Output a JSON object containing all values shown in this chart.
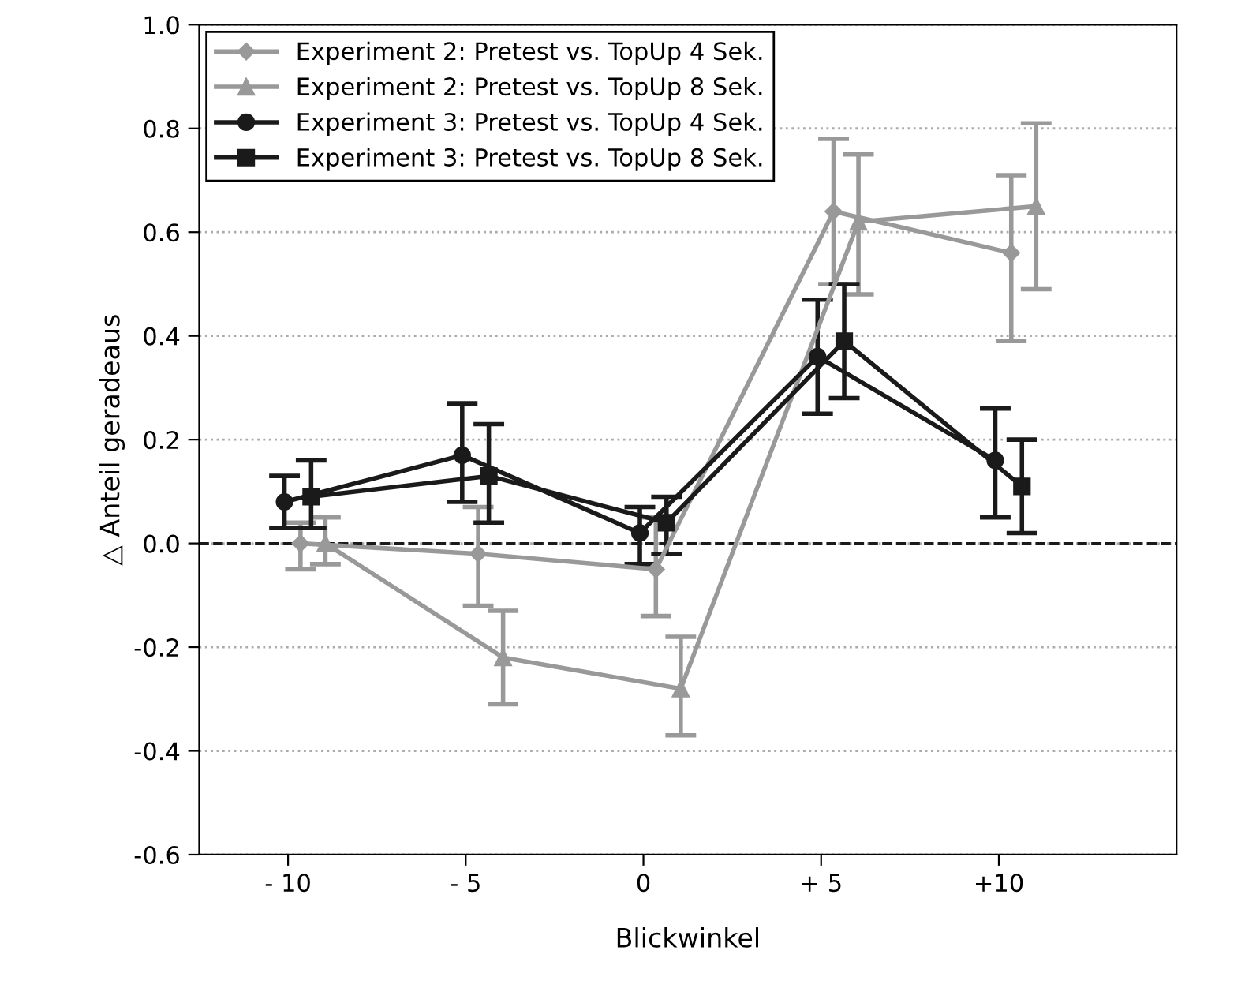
{
  "chart_data": {
    "type": "line",
    "xlabel": "Blickwinkel",
    "ylabel": "△ Anteil geradeaus",
    "xlim": [
      -12.5,
      15
    ],
    "xticks": [
      {
        "value": -10,
        "label": "- 10"
      },
      {
        "value": -5,
        "label": "- 5"
      },
      {
        "value": 0,
        "label": "0"
      },
      {
        "value": 5,
        "label": "+ 5"
      },
      {
        "value": 10,
        "label": "+10"
      }
    ],
    "ylim": [
      -0.6,
      1.0
    ],
    "yticks": [
      {
        "value": -0.6,
        "label": "-0.6"
      },
      {
        "value": -0.4,
        "label": "-0.4"
      },
      {
        "value": -0.2,
        "label": "-0.2"
      },
      {
        "value": 0.0,
        "label": "0.0"
      },
      {
        "value": 0.2,
        "label": "0.2"
      },
      {
        "value": 0.4,
        "label": "0.4"
      },
      {
        "value": 0.6,
        "label": "0.6"
      },
      {
        "value": 0.8,
        "label": "0.8"
      },
      {
        "value": 1.0,
        "label": "1.0"
      }
    ],
    "grid": "y",
    "legend": "top left",
    "ref_lines": [
      {
        "axis": "y",
        "value": 0.0,
        "color": "#1a1a1a",
        "line_style": "dashed"
      }
    ],
    "series": [
      {
        "name": "Experiment 2: Pretest vs. TopUp 4 Sek.",
        "color": "#999999",
        "marker": "diamond",
        "x": [
          -9.65,
          -4.65,
          0.35,
          5.35,
          10.35
        ],
        "values": [
          0.0,
          -0.02,
          -0.05,
          0.64,
          0.56
        ],
        "errors": [
          [
            -0.05,
            0.04
          ],
          [
            -0.12,
            0.07
          ],
          [
            -0.14,
            0.05
          ],
          [
            0.5,
            0.78
          ],
          [
            0.39,
            0.71
          ]
        ]
      },
      {
        "name": "Experiment 2: Pretest vs. TopUp 8 Sek.",
        "color": "#999999",
        "marker": "triangle",
        "x": [
          -8.95,
          -3.95,
          1.05,
          6.05,
          11.05
        ],
        "values": [
          0.0,
          -0.22,
          -0.28,
          0.62,
          0.65
        ],
        "errors": [
          [
            -0.04,
            0.05
          ],
          [
            -0.31,
            -0.13
          ],
          [
            -0.37,
            -0.18
          ],
          [
            0.48,
            0.75
          ],
          [
            0.49,
            0.81
          ]
        ]
      },
      {
        "name": "Experiment 3: Pretest vs. TopUp 4 Sek.",
        "color": "#1a1a1a",
        "marker": "circle",
        "x": [
          -10.1,
          -5.1,
          -0.1,
          4.9,
          9.9
        ],
        "values": [
          0.08,
          0.17,
          0.02,
          0.36,
          0.16
        ],
        "errors": [
          [
            0.03,
            0.13
          ],
          [
            0.08,
            0.27
          ],
          [
            -0.04,
            0.07
          ],
          [
            0.25,
            0.47
          ],
          [
            0.05,
            0.26
          ]
        ]
      },
      {
        "name": "Experiment 3: Pretest vs. TopUp 8 Sek.",
        "color": "#1a1a1a",
        "marker": "square",
        "x": [
          -9.35,
          -4.35,
          0.65,
          5.65,
          10.65
        ],
        "values": [
          0.09,
          0.13,
          0.04,
          0.39,
          0.11
        ],
        "errors": [
          [
            0.03,
            0.16
          ],
          [
            0.04,
            0.23
          ],
          [
            -0.02,
            0.09
          ],
          [
            0.28,
            0.5
          ],
          [
            0.02,
            0.2
          ]
        ]
      }
    ]
  }
}
